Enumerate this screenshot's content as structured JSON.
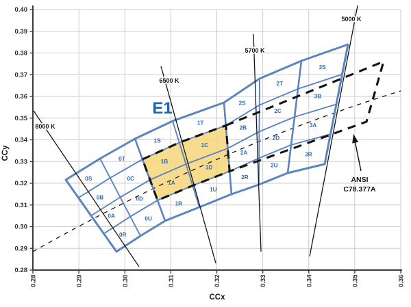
{
  "chart_data": {
    "type": "chromaticity-bin-diagram",
    "title": "",
    "x_axis": {
      "label": "CCx",
      "min": 0.28,
      "max": 0.36,
      "tick_step": 0.01,
      "ticks": [
        "0.28",
        "0.29",
        "0.30",
        "0.31",
        "0.32",
        "0.33",
        "0.34",
        "0.35",
        "0.36"
      ]
    },
    "y_axis": {
      "label": "CCy",
      "min": 0.28,
      "max": 0.4,
      "tick_step": 0.01,
      "ticks": [
        "0.28",
        "0.29",
        "0.30",
        "0.31",
        "0.32",
        "0.33",
        "0.34",
        "0.35",
        "0.36",
        "0.37",
        "0.38",
        "0.39",
        "0.40"
      ]
    },
    "region_label": {
      "text": "E1",
      "x": 0.30816,
      "y": 0.35213
    },
    "mesh": {
      "row_fractions": [
        0,
        0.25,
        0.5,
        0.75,
        1
      ],
      "boundaries": [
        {
          "t": [
            0.28715,
            0.32157
          ],
          "b": [
            0.29818,
            0.2885
          ]
        },
        {
          "t": [
            0.2946,
            0.33134
          ],
          "b": [
            0.30339,
            0.29575
          ]
        },
        {
          "t": [
            0.3022,
            0.34047
          ],
          "b": [
            0.30875,
            0.30268
          ]
        },
        {
          "t": [
            0.31039,
            0.34866
          ],
          "b": [
            0.3162,
            0.30898
          ]
        },
        {
          "t": [
            0.32156,
            0.35717
          ],
          "b": [
            0.3232,
            0.31497
          ]
        },
        {
          "t": [
            0.32931,
            0.36819
          ],
          "b": [
            0.32916,
            0.31937
          ]
        },
        {
          "t": [
            0.3384,
            0.37638
          ],
          "b": [
            0.33542,
            0.32473
          ]
        },
        {
          "t": [
            0.34853,
            0.38394
          ],
          "b": [
            0.34346,
            0.32882
          ]
        }
      ],
      "cells": [
        [
          "0S",
          "0B",
          "0A",
          "0R"
        ],
        [
          "0T",
          "0C",
          "0D",
          "0U"
        ],
        [
          "1S",
          "1B",
          "1A",
          "1R"
        ],
        [
          "1T",
          "1C",
          "1D",
          "1U"
        ],
        [
          "2S",
          "2B",
          "2A",
          "2R"
        ],
        [
          "2T",
          "2C",
          "2D",
          "2U"
        ],
        [
          "3S",
          "3B",
          "3A",
          "3R"
        ]
      ]
    },
    "highlight": {
      "bins": [
        "1B",
        "1C",
        "1A",
        "1D"
      ],
      "col_range": [
        2,
        4
      ],
      "row_range": [
        1,
        3
      ]
    },
    "cct_lines": [
      {
        "label": "8000 K",
        "p1": [
          0.28015,
          0.35339
        ],
        "p2": [
          0.30309,
          0.28157
        ],
        "label_pos": [
          0.28268,
          0.3452
        ]
      },
      {
        "label": "6500 K",
        "p1": [
          0.30786,
          0.37386
        ],
        "p2": [
          0.31978,
          0.28315
        ],
        "label_pos": [
          0.30965,
          0.3663
        ]
      },
      {
        "label": "5700 K",
        "p1": [
          0.32797,
          0.38866
        ],
        "p2": [
          0.32961,
          0.2885
        ],
        "label_pos": [
          0.32827,
          0.38016
        ]
      },
      {
        "label": "5000 K",
        "p1": [
          0.35062,
          0.40189
        ],
        "p2": [
          0.34019,
          0.2863
        ],
        "label_pos": [
          0.34927,
          0.39465
        ]
      }
    ],
    "locus": {
      "p0": [
        0.28,
        0.2885
      ],
      "ctrl": [
        0.31993,
        0.33638
      ],
      "p1": [
        0.36,
        0.36252
      ]
    },
    "ansi_overlay": {
      "label_lines": [
        "ANSI",
        "C78.377A"
      ],
      "label_pos": [
        0.35106,
        0.32063
      ],
      "arrow_tail": [
        0.35136,
        0.32567
      ],
      "arrow_tip": [
        0.34972,
        0.34268
      ],
      "quad_extension": {
        "tr": [
          0.35628,
          0.37606
        ],
        "br": [
          0.35255,
          0.34835
        ]
      }
    },
    "colors": {
      "mesh": "#5b84c0",
      "bin_text": "#2e6cb0",
      "region_text": "#2166ac",
      "highlight": "#f7d77e",
      "grid": "#cccccc",
      "axis": "#3c3c3c",
      "black": "#141414",
      "tick_text": "#2b2b2b"
    }
  }
}
